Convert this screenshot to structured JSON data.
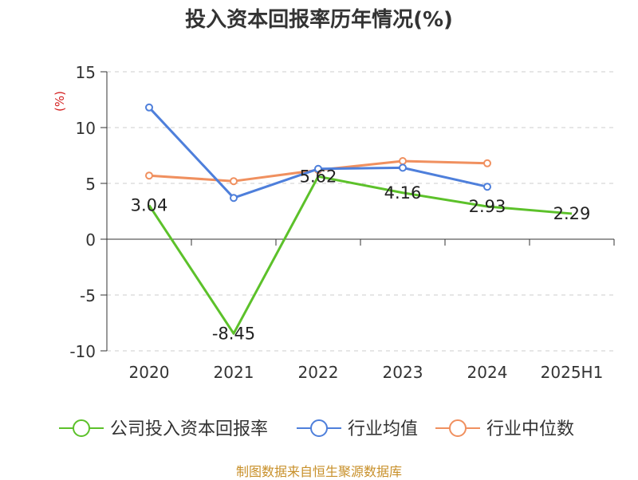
{
  "chart_data": {
    "type": "line",
    "title": "投入资本回报率历年情况(%)",
    "ylabel": "(%)",
    "categories": [
      "2020",
      "2021",
      "2022",
      "2023",
      "2024",
      "2025H1"
    ],
    "ylim": [
      -10,
      15
    ],
    "yticks": [
      15,
      10,
      5,
      0,
      -5,
      -10
    ],
    "grid": true,
    "legend_position": "bottom",
    "series": [
      {
        "name": "公司投入资本回报率",
        "color": "#5cc12a",
        "values": [
          3.04,
          -8.45,
          5.62,
          4.16,
          2.93,
          2.29
        ],
        "labels": [
          "3.04",
          "-8.45",
          "5.62",
          "4.16",
          "2.93",
          "2.29"
        ]
      },
      {
        "name": "行业均值",
        "color": "#4e7fdb",
        "values": [
          11.8,
          3.7,
          6.3,
          6.4,
          4.7,
          null
        ]
      },
      {
        "name": "行业中位数",
        "color": "#f0905f",
        "values": [
          5.7,
          5.2,
          6.2,
          7.0,
          6.8,
          null
        ]
      }
    ],
    "source": "制图数据来自恒生聚源数据库"
  }
}
